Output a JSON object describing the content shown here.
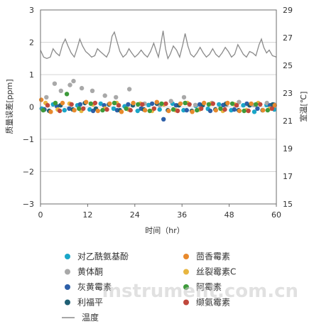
{
  "chart_data": {
    "type": "scatter",
    "xlabel": "时间（hr）",
    "ylabel": "质量误差[ppm]",
    "y2label": "室温[℃]",
    "xlim": [
      0,
      60
    ],
    "ylim": [
      -3,
      3
    ],
    "y2lim": [
      15,
      29
    ],
    "xticks": [
      "0",
      "12",
      "24",
      "36",
      "48",
      "60"
    ],
    "yticks": [
      "3",
      "2",
      "1",
      "0",
      "−1",
      "−2",
      "−3"
    ],
    "y2ticks": [
      "29",
      "27",
      "25",
      "23",
      "21",
      "19",
      "17",
      "15"
    ],
    "grid": true,
    "legend": "bottom",
    "series": [
      {
        "name": "对乙酰氨基酚",
        "color": "#1aa6c8",
        "values": [
          [
            0.3,
            -0.05
          ],
          [
            3.2,
            0.08
          ],
          [
            6.1,
            -0.1
          ],
          [
            9.4,
            0.05
          ],
          [
            12.5,
            -0.08
          ],
          [
            15.3,
            0.1
          ],
          [
            18.6,
            -0.05
          ],
          [
            21.4,
            0.02
          ],
          [
            24.7,
            -0.12
          ],
          [
            27.5,
            0.06
          ],
          [
            30.3,
            -0.08
          ],
          [
            33.6,
            0.1
          ],
          [
            36.4,
            -0.1
          ],
          [
            39.5,
            0.03
          ],
          [
            42.6,
            -0.06
          ],
          [
            45.4,
            0.08
          ],
          [
            48.5,
            -0.1
          ],
          [
            51.6,
            0.05
          ],
          [
            54.4,
            -0.15
          ],
          [
            57.5,
            0.06
          ],
          [
            59.5,
            -0.08
          ]
        ]
      },
      {
        "name": "黄体酮",
        "color": "#a8a8a8",
        "values": [
          [
            1.5,
            0.3
          ],
          [
            3.6,
            0.72
          ],
          [
            5.2,
            0.5
          ],
          [
            7.5,
            0.68
          ],
          [
            8.4,
            0.8
          ],
          [
            10.5,
            0.58
          ],
          [
            13.2,
            0.5
          ],
          [
            16.4,
            0.35
          ],
          [
            19.2,
            0.3
          ],
          [
            22.6,
            0.55
          ],
          [
            26.5,
            0.1
          ],
          [
            30.4,
            0.05
          ],
          [
            33.2,
            0.18
          ],
          [
            36.5,
            0.3
          ],
          [
            39.4,
            0.06
          ],
          [
            43.6,
            0.12
          ],
          [
            47.3,
            0.06
          ],
          [
            50.5,
            0.15
          ],
          [
            54.3,
            0.06
          ],
          [
            57.6,
            0.12
          ],
          [
            59.4,
            0.08
          ]
        ]
      },
      {
        "name": "灰黄霉素",
        "color": "#2d5fa8",
        "values": [
          [
            1.0,
            -0.08
          ],
          [
            4.2,
            0.02
          ],
          [
            7.3,
            -0.05
          ],
          [
            10.1,
            0.08
          ],
          [
            13.4,
            -0.12
          ],
          [
            16.2,
            0.05
          ],
          [
            19.5,
            -0.1
          ],
          [
            22.3,
            0.08
          ],
          [
            25.6,
            -0.05
          ],
          [
            28.4,
            0.1
          ],
          [
            31.3,
            -0.38
          ],
          [
            34.5,
            0.05
          ],
          [
            37.2,
            -0.1
          ],
          [
            40.5,
            0.08
          ],
          [
            43.2,
            -0.12
          ],
          [
            46.5,
            0.06
          ],
          [
            49.3,
            -0.08
          ],
          [
            52.5,
            0.1
          ],
          [
            55.2,
            -0.05
          ],
          [
            58.4,
            0.05
          ]
        ]
      },
      {
        "name": "利福平",
        "color": "#1f5f74",
        "values": [
          [
            2.2,
            -0.12
          ],
          [
            5.1,
            0.05
          ],
          [
            8.2,
            -0.08
          ],
          [
            11.3,
            0.12
          ],
          [
            14.1,
            -0.05
          ],
          [
            17.4,
            0.08
          ],
          [
            20.2,
            -0.1
          ],
          [
            23.5,
            0.05
          ],
          [
            26.3,
            -0.08
          ],
          [
            29.6,
            0.1
          ],
          [
            32.4,
            -0.1
          ],
          [
            35.2,
            0.05
          ],
          [
            38.5,
            -0.12
          ],
          [
            41.3,
            0.06
          ],
          [
            44.5,
            -0.08
          ],
          [
            47.2,
            0.1
          ],
          [
            50.4,
            -0.1
          ],
          [
            53.2,
            0.05
          ],
          [
            56.5,
            -0.1
          ],
          [
            59.1,
            0.08
          ]
        ]
      },
      {
        "name": "茴香霉素",
        "color": "#e8892c",
        "values": [
          [
            0.2,
            0.22
          ],
          [
            2.6,
            -0.15
          ],
          [
            5.6,
            0.12
          ],
          [
            8.6,
            -0.1
          ],
          [
            11.6,
            0.15
          ],
          [
            14.6,
            -0.12
          ],
          [
            17.6,
            0.1
          ],
          [
            20.6,
            -0.15
          ],
          [
            23.6,
            0.12
          ],
          [
            26.6,
            -0.1
          ],
          [
            29.6,
            0.15
          ],
          [
            32.6,
            -0.12
          ],
          [
            35.6,
            0.1
          ],
          [
            38.6,
            -0.15
          ],
          [
            41.6,
            0.12
          ],
          [
            44.6,
            -0.1
          ],
          [
            47.6,
            0.12
          ],
          [
            50.6,
            -0.12
          ],
          [
            53.6,
            0.1
          ],
          [
            56.6,
            -0.1
          ],
          [
            59.6,
            0.05
          ]
        ]
      },
      {
        "name": "丝裂霉素C",
        "color": "#e8b640",
        "values": [
          [
            1.3,
            0.12
          ],
          [
            4.4,
            -0.08
          ],
          [
            7.4,
            0.1
          ],
          [
            10.4,
            -0.12
          ],
          [
            13.4,
            0.08
          ],
          [
            16.4,
            -0.05
          ],
          [
            19.4,
            0.12
          ],
          [
            22.4,
            -0.08
          ],
          [
            25.4,
            0.1
          ],
          [
            28.4,
            -0.12
          ],
          [
            31.4,
            0.08
          ],
          [
            34.4,
            -0.1
          ],
          [
            37.4,
            0.12
          ],
          [
            40.4,
            -0.08
          ],
          [
            43.4,
            0.1
          ],
          [
            46.4,
            -0.12
          ],
          [
            49.4,
            0.08
          ],
          [
            52.4,
            -0.1
          ],
          [
            55.4,
            0.12
          ],
          [
            58.4,
            -0.05
          ]
        ]
      },
      {
        "name": "阿霉素",
        "color": "#3d9a3a",
        "values": [
          [
            0.7,
            -0.1
          ],
          [
            3.8,
            0.12
          ],
          [
            6.7,
            0.4
          ],
          [
            9.8,
            -0.05
          ],
          [
            12.8,
            0.1
          ],
          [
            15.8,
            -0.1
          ],
          [
            18.8,
            0.12
          ],
          [
            21.8,
            -0.05
          ],
          [
            24.8,
            0.08
          ],
          [
            27.8,
            -0.12
          ],
          [
            30.8,
            0.1
          ],
          [
            33.8,
            -0.08
          ],
          [
            36.8,
            0.12
          ],
          [
            39.8,
            -0.1
          ],
          [
            42.8,
            0.08
          ],
          [
            45.8,
            -0.05
          ],
          [
            48.8,
            0.1
          ],
          [
            51.8,
            -0.12
          ],
          [
            54.8,
            0.08
          ],
          [
            57.8,
            -0.1
          ]
        ]
      },
      {
        "name": "缬氨霉素",
        "color": "#c0483c",
        "values": [
          [
            1.8,
            0.05
          ],
          [
            4.9,
            -0.12
          ],
          [
            7.9,
            0.08
          ],
          [
            10.9,
            -0.05
          ],
          [
            13.9,
            0.12
          ],
          [
            16.9,
            -0.08
          ],
          [
            19.9,
            0.05
          ],
          [
            22.9,
            -0.1
          ],
          [
            25.9,
            0.08
          ],
          [
            28.9,
            -0.05
          ],
          [
            31.9,
            0.1
          ],
          [
            34.9,
            -0.12
          ],
          [
            37.9,
            0.08
          ],
          [
            40.9,
            -0.05
          ],
          [
            43.9,
            0.1
          ],
          [
            46.9,
            -0.08
          ],
          [
            49.9,
            0.05
          ],
          [
            52.9,
            -0.12
          ],
          [
            55.9,
            0.08
          ],
          [
            58.9,
            -0.05
          ]
        ]
      }
    ],
    "temperature": {
      "name": "温度",
      "color": "#8a8a8a",
      "values": [
        [
          0,
          26.1
        ],
        [
          0.8,
          25.6
        ],
        [
          1.6,
          25.5
        ],
        [
          2.5,
          25.6
        ],
        [
          3.2,
          26.2
        ],
        [
          4.0,
          25.9
        ],
        [
          4.8,
          25.7
        ],
        [
          5.6,
          26.5
        ],
        [
          6.3,
          26.9
        ],
        [
          7.0,
          26.4
        ],
        [
          7.8,
          25.9
        ],
        [
          8.6,
          25.6
        ],
        [
          9.4,
          26.3
        ],
        [
          10.0,
          26.9
        ],
        [
          10.7,
          26.4
        ],
        [
          11.5,
          26.0
        ],
        [
          12.3,
          25.8
        ],
        [
          13.0,
          25.6
        ],
        [
          13.8,
          25.7
        ],
        [
          14.5,
          26.2
        ],
        [
          15.2,
          26.0
        ],
        [
          16.0,
          25.8
        ],
        [
          16.8,
          25.6
        ],
        [
          17.5,
          26.0
        ],
        [
          18.2,
          27.1
        ],
        [
          18.8,
          27.4
        ],
        [
          19.4,
          26.8
        ],
        [
          20.2,
          26.0
        ],
        [
          21.0,
          25.6
        ],
        [
          21.8,
          25.8
        ],
        [
          22.5,
          26.2
        ],
        [
          23.2,
          25.9
        ],
        [
          24.0,
          25.6
        ],
        [
          24.8,
          25.8
        ],
        [
          25.6,
          26.1
        ],
        [
          26.4,
          25.8
        ],
        [
          27.2,
          25.6
        ],
        [
          28.0,
          26.0
        ],
        [
          28.8,
          26.6
        ],
        [
          29.5,
          26.0
        ],
        [
          30.0,
          25.6
        ],
        [
          30.6,
          26.5
        ],
        [
          31.2,
          27.5
        ],
        [
          31.8,
          26.2
        ],
        [
          32.4,
          25.5
        ],
        [
          33.0,
          25.8
        ],
        [
          33.8,
          26.4
        ],
        [
          34.6,
          26.1
        ],
        [
          35.4,
          25.6
        ],
        [
          36.2,
          26.5
        ],
        [
          36.8,
          27.3
        ],
        [
          37.5,
          26.4
        ],
        [
          38.2,
          25.8
        ],
        [
          39.0,
          25.6
        ],
        [
          39.8,
          25.9
        ],
        [
          40.6,
          26.3
        ],
        [
          41.4,
          25.9
        ],
        [
          42.2,
          25.6
        ],
        [
          43.0,
          25.8
        ],
        [
          43.8,
          26.2
        ],
        [
          44.6,
          25.8
        ],
        [
          45.4,
          25.6
        ],
        [
          46.2,
          25.9
        ],
        [
          47.0,
          26.3
        ],
        [
          47.8,
          26.0
        ],
        [
          48.6,
          25.6
        ],
        [
          49.4,
          25.8
        ],
        [
          50.2,
          26.5
        ],
        [
          50.8,
          26.2
        ],
        [
          51.6,
          25.8
        ],
        [
          52.4,
          25.6
        ],
        [
          53.2,
          26.0
        ],
        [
          54.0,
          25.9
        ],
        [
          54.8,
          25.7
        ],
        [
          55.6,
          26.5
        ],
        [
          56.2,
          26.9
        ],
        [
          56.8,
          26.3
        ],
        [
          57.5,
          25.9
        ],
        [
          58.2,
          26.1
        ],
        [
          59.0,
          25.7
        ],
        [
          60,
          25.6
        ]
      ]
    },
    "legend_entries": [
      {
        "name": "对乙酰氨基酚",
        "color": "#1aa6c8",
        "marker": "dot"
      },
      {
        "name": "茴香霉素",
        "color": "#e8892c",
        "marker": "dot"
      },
      {
        "name": "黄体酮",
        "color": "#a8a8a8",
        "marker": "dot"
      },
      {
        "name": "丝裂霉素C",
        "color": "#e8b640",
        "marker": "dot"
      },
      {
        "name": "灰黄霉素",
        "color": "#2d5fa8",
        "marker": "dot"
      },
      {
        "name": "阿霉素",
        "color": "#3d9a3a",
        "marker": "dot"
      },
      {
        "name": "利福平",
        "color": "#1f5f74",
        "marker": "dot"
      },
      {
        "name": "缬氨霉素",
        "color": "#c0483c",
        "marker": "dot"
      },
      {
        "name": "温度",
        "color": "#8a8a8a",
        "marker": "line"
      }
    ]
  },
  "watermark": "instrument.com.cn"
}
